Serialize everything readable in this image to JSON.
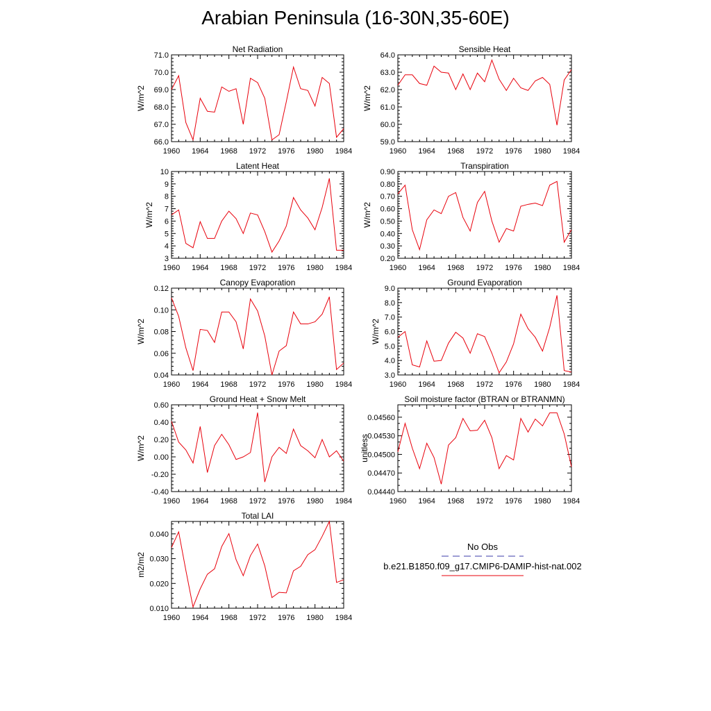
{
  "title": "Arabian Peninsula (16-30N,35-60E)",
  "xlim": [
    1960,
    1984
  ],
  "xticks": [
    "1960",
    "1964",
    "1968",
    "1972",
    "1976",
    "1980",
    "1984"
  ],
  "series_color": "#e8000b",
  "obs_color": "#3b3ba8",
  "legend": {
    "obs_label": "No Obs",
    "model_label": "b.e21.B1850.f09_g17.CMIP6-DAMIP-hist-nat.002"
  },
  "chart_data": [
    {
      "type": "line",
      "title": "Net Radiation",
      "ylabel": "W/m^2",
      "ylim": [
        66.0,
        71.0
      ],
      "yticks": [
        "66.0",
        "67.0",
        "68.0",
        "69.0",
        "70.0",
        "71.0"
      ],
      "yminor": 5,
      "x": [
        1960,
        1961,
        1962,
        1963,
        1964,
        1965,
        1966,
        1967,
        1968,
        1969,
        1970,
        1971,
        1972,
        1973,
        1974,
        1975,
        1976,
        1977,
        1978,
        1979,
        1980,
        1981,
        1982,
        1983,
        1984
      ],
      "values": [
        69.0,
        69.8,
        67.1,
        66.1,
        68.5,
        67.75,
        67.7,
        69.15,
        68.9,
        69.05,
        67.0,
        69.65,
        69.4,
        68.5,
        66.1,
        66.4,
        68.3,
        70.3,
        69.05,
        68.95,
        68.05,
        69.7,
        69.35,
        66.25,
        66.75
      ]
    },
    {
      "type": "line",
      "title": "Sensible Heat",
      "ylabel": "W/m^2",
      "ylim": [
        59.0,
        64.0
      ],
      "yticks": [
        "59.0",
        "60.0",
        "61.0",
        "62.0",
        "63.0",
        "64.0"
      ],
      "yminor": 5,
      "x": [
        1960,
        1961,
        1962,
        1963,
        1964,
        1965,
        1966,
        1967,
        1968,
        1969,
        1970,
        1971,
        1972,
        1973,
        1974,
        1975,
        1976,
        1977,
        1978,
        1979,
        1980,
        1981,
        1982,
        1983,
        1984
      ],
      "values": [
        62.25,
        62.85,
        62.85,
        62.35,
        62.25,
        63.35,
        63.0,
        62.95,
        62.0,
        62.9,
        62.0,
        62.95,
        62.45,
        63.7,
        62.6,
        61.95,
        62.65,
        62.1,
        61.95,
        62.5,
        62.7,
        62.3,
        59.95,
        62.55,
        63.15
      ]
    },
    {
      "type": "line",
      "title": "Latent Heat",
      "ylabel": "W/m^2",
      "ylim": [
        3,
        10
      ],
      "yticks": [
        "3",
        "4",
        "5",
        "6",
        "7",
        "8",
        "9",
        "10"
      ],
      "yminor": 5,
      "x": [
        1960,
        1961,
        1962,
        1963,
        1964,
        1965,
        1966,
        1967,
        1968,
        1969,
        1970,
        1971,
        1972,
        1973,
        1974,
        1975,
        1976,
        1977,
        1978,
        1979,
        1980,
        1981,
        1982,
        1983,
        1984
      ],
      "values": [
        6.5,
        6.9,
        4.2,
        3.85,
        5.95,
        4.6,
        4.6,
        6.0,
        6.8,
        6.2,
        5.0,
        6.65,
        6.5,
        5.15,
        3.5,
        4.4,
        5.6,
        7.9,
        6.9,
        6.25,
        5.3,
        7.1,
        9.45,
        3.65,
        3.65
      ]
    },
    {
      "type": "line",
      "title": "Transpiration",
      "ylabel": "W/m^2",
      "ylim": [
        0.2,
        0.9
      ],
      "yticks": [
        "0.20",
        "0.30",
        "0.40",
        "0.50",
        "0.60",
        "0.70",
        "0.80",
        "0.90"
      ],
      "yminor": 5,
      "x": [
        1960,
        1961,
        1962,
        1963,
        1964,
        1965,
        1966,
        1967,
        1968,
        1969,
        1970,
        1971,
        1972,
        1973,
        1974,
        1975,
        1976,
        1977,
        1978,
        1979,
        1980,
        1981,
        1982,
        1983,
        1984
      ],
      "values": [
        0.72,
        0.79,
        0.43,
        0.27,
        0.51,
        0.59,
        0.56,
        0.7,
        0.73,
        0.53,
        0.42,
        0.65,
        0.74,
        0.5,
        0.33,
        0.44,
        0.42,
        0.62,
        0.635,
        0.645,
        0.625,
        0.79,
        0.82,
        0.33,
        0.43
      ]
    },
    {
      "type": "line",
      "title": "Canopy Evaporation",
      "ylabel": "W/m^2",
      "ylim": [
        0.04,
        0.12
      ],
      "yticks": [
        "0.04",
        "0.06",
        "0.08",
        "0.10",
        "0.12"
      ],
      "yminor": 5,
      "x": [
        1960,
        1961,
        1962,
        1963,
        1964,
        1965,
        1966,
        1967,
        1968,
        1969,
        1970,
        1971,
        1972,
        1973,
        1974,
        1975,
        1976,
        1977,
        1978,
        1979,
        1980,
        1981,
        1982,
        1983,
        1984
      ],
      "values": [
        0.111,
        0.094,
        0.065,
        0.044,
        0.082,
        0.081,
        0.07,
        0.098,
        0.098,
        0.089,
        0.064,
        0.11,
        0.099,
        0.076,
        0.04,
        0.062,
        0.067,
        0.098,
        0.087,
        0.087,
        0.089,
        0.096,
        0.112,
        0.045,
        0.051
      ]
    },
    {
      "type": "line",
      "title": "Ground Evaporation",
      "ylabel": "W/m^2",
      "ylim": [
        3.0,
        9.0
      ],
      "yticks": [
        "3.0",
        "4.0",
        "5.0",
        "6.0",
        "7.0",
        "8.0",
        "9.0"
      ],
      "yminor": 5,
      "x": [
        1960,
        1961,
        1962,
        1963,
        1964,
        1965,
        1966,
        1967,
        1968,
        1969,
        1970,
        1971,
        1972,
        1973,
        1974,
        1975,
        1976,
        1977,
        1978,
        1979,
        1980,
        1981,
        1982,
        1983,
        1984
      ],
      "values": [
        5.6,
        6.0,
        3.7,
        3.55,
        5.35,
        3.95,
        4.0,
        5.2,
        5.95,
        5.55,
        4.5,
        5.85,
        5.65,
        4.5,
        3.15,
        3.9,
        5.15,
        7.2,
        6.2,
        5.6,
        4.65,
        6.3,
        8.5,
        3.3,
        3.2
      ]
    },
    {
      "type": "line",
      "title": "Ground Heat + Snow Melt",
      "ylabel": "W/m^2",
      "ylim": [
        -0.4,
        0.6
      ],
      "yticks": [
        "-0.40",
        "-0.20",
        "0.00",
        "0.20",
        "0.40",
        "0.60"
      ],
      "yminor": 5,
      "x": [
        1960,
        1961,
        1962,
        1963,
        1964,
        1965,
        1966,
        1967,
        1968,
        1969,
        1970,
        1971,
        1972,
        1973,
        1974,
        1975,
        1976,
        1977,
        1978,
        1979,
        1980,
        1981,
        1982,
        1983,
        1984
      ],
      "values": [
        0.41,
        0.17,
        0.08,
        -0.07,
        0.35,
        -0.18,
        0.13,
        0.26,
        0.14,
        -0.03,
        0.0,
        0.05,
        0.51,
        -0.29,
        0.0,
        0.11,
        0.04,
        0.32,
        0.13,
        0.07,
        -0.01,
        0.2,
        0.0,
        0.07,
        -0.05
      ]
    },
    {
      "type": "line",
      "title": "Soil moisture factor (BTRAN or BTRANMN)",
      "ylabel": "unitless",
      "ylim": [
        0.0444,
        0.0458
      ],
      "yticks": [
        "0.04440",
        "0.04470",
        "0.04500",
        "0.04530",
        "0.04560"
      ],
      "ytick_values": [
        0.0444,
        0.0447,
        0.045,
        0.0453,
        0.0456
      ],
      "yminor": 3,
      "x": [
        1960,
        1961,
        1962,
        1963,
        1964,
        1965,
        1966,
        1967,
        1968,
        1969,
        1970,
        1971,
        1972,
        1973,
        1974,
        1975,
        1976,
        1977,
        1978,
        1979,
        1980,
        1981,
        1982,
        1983,
        1984
      ],
      "values": [
        0.04504,
        0.0455,
        0.0451,
        0.04477,
        0.04518,
        0.04495,
        0.04452,
        0.04515,
        0.04527,
        0.04558,
        0.04538,
        0.04539,
        0.04555,
        0.04527,
        0.04477,
        0.04498,
        0.04491,
        0.04558,
        0.04536,
        0.04557,
        0.04546,
        0.04567,
        0.04567,
        0.04533,
        0.0448
      ]
    },
    {
      "type": "line",
      "title": "Total LAI",
      "ylabel": "m2/m2",
      "ylim": [
        0.01,
        0.045
      ],
      "yticks": [
        "0.010",
        "0.020",
        "0.030",
        "0.040"
      ],
      "ytick_values": [
        0.01,
        0.02,
        0.03,
        0.04
      ],
      "yminor": 5,
      "x": [
        1960,
        1961,
        1962,
        1963,
        1964,
        1965,
        1966,
        1967,
        1968,
        1969,
        1970,
        1971,
        1972,
        1973,
        1974,
        1975,
        1976,
        1977,
        1978,
        1979,
        1980,
        1981,
        1982,
        1983,
        1984
      ],
      "values": [
        0.0345,
        0.0408,
        0.0253,
        0.0105,
        0.0178,
        0.0237,
        0.0259,
        0.0349,
        0.0401,
        0.0296,
        0.0231,
        0.0312,
        0.0359,
        0.0271,
        0.0143,
        0.0164,
        0.0162,
        0.0251,
        0.0269,
        0.0316,
        0.0336,
        0.039,
        0.045,
        0.0204,
        0.0215
      ]
    }
  ]
}
